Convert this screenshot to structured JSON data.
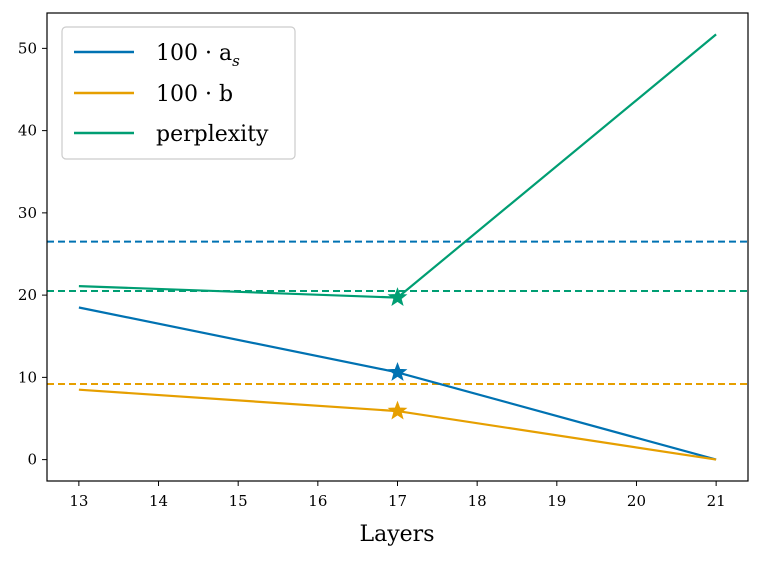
{
  "chart_data": {
    "type": "line",
    "title": "",
    "xlabel": "Layers",
    "ylabel": "",
    "xlim": [
      12.6,
      21.4
    ],
    "ylim": [
      -2.6,
      54.3
    ],
    "xticks": [
      13,
      14,
      15,
      16,
      17,
      18,
      19,
      20,
      21
    ],
    "yticks": [
      0,
      10,
      20,
      30,
      40,
      50
    ],
    "grid": false,
    "legend_position": "top-left",
    "series": [
      {
        "name": "100·a_s",
        "legend_main": "100 · a",
        "legend_sub": "s",
        "color": "#0072b2",
        "x": [
          13,
          17,
          21
        ],
        "y": [
          18.5,
          10.6,
          0
        ],
        "marker": {
          "x": 17,
          "y": 10.6
        },
        "baseline": 26.5
      },
      {
        "name": "100·b",
        "legend_main": "100 · b",
        "legend_sub": "",
        "color": "#e69f00",
        "x": [
          13,
          17,
          21
        ],
        "y": [
          8.5,
          5.9,
          0
        ],
        "marker": {
          "x": 17,
          "y": 5.9
        },
        "baseline": 9.2
      },
      {
        "name": "perplexity",
        "legend_main": "perplexity",
        "legend_sub": "",
        "color": "#009e73",
        "x": [
          13,
          17,
          21
        ],
        "y": [
          21.1,
          19.7,
          51.7
        ],
        "marker": {
          "x": 17,
          "y": 19.7
        },
        "baseline": 20.5
      }
    ]
  }
}
